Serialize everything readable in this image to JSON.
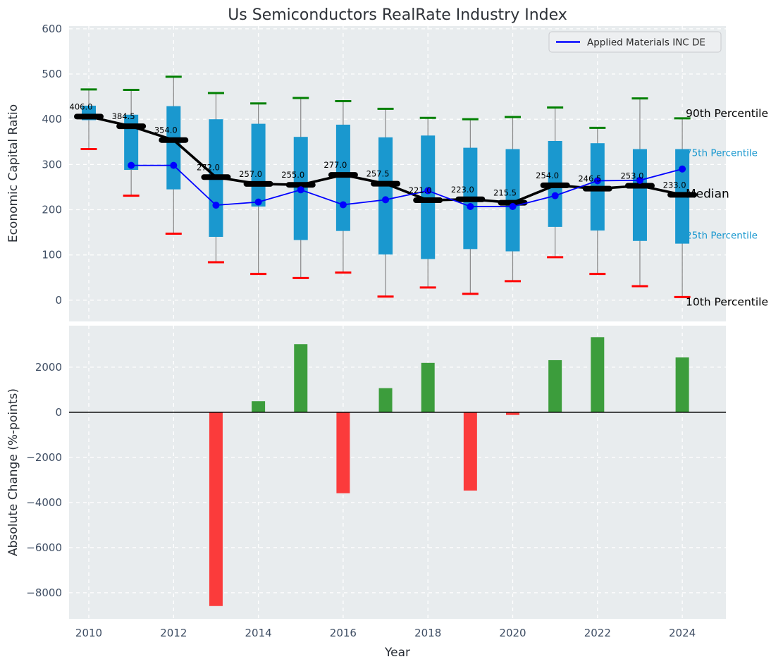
{
  "title": "Us Semiconductors RealRate Industry Index",
  "legend": {
    "label": "Applied Materials INC DE",
    "line_color": "#0000ff"
  },
  "chart_data": [
    {
      "type": "boxplot",
      "panel": "top",
      "title": "Us Semiconductors RealRate Industry Index",
      "ylabel": "Economic Capital Ratio",
      "ylim": [
        -47,
        606
      ],
      "yticks": [
        0,
        100,
        200,
        300,
        400,
        500,
        600
      ],
      "grid": true,
      "categories": [
        2010,
        2011,
        2012,
        2013,
        2014,
        2015,
        2016,
        2017,
        2018,
        2019,
        2020,
        2021,
        2022,
        2023,
        2024
      ],
      "xticks": [
        2010,
        2012,
        2014,
        2016,
        2018,
        2020,
        2022,
        2024
      ],
      "series": {
        "p90": [
          466,
          465,
          494,
          458,
          435,
          447,
          440,
          423,
          403,
          400,
          405,
          426,
          381,
          446,
          402
        ],
        "p75": [
          430,
          410,
          429,
          400,
          390,
          361,
          388,
          360,
          364,
          337,
          334,
          352,
          347,
          334,
          334
        ],
        "median": [
          406,
          384.5,
          354,
          272,
          257,
          255,
          277,
          257.5,
          221,
          223,
          215.5,
          254,
          246.5,
          253,
          233
        ],
        "p25": [
          398,
          288,
          245,
          140,
          207,
          133,
          153,
          101,
          91,
          113,
          108,
          162,
          154,
          131,
          125
        ],
        "p10": [
          334,
          231,
          147,
          84,
          58,
          49,
          61,
          8,
          28,
          14,
          42,
          95,
          58,
          31,
          7
        ],
        "applied_materials": [
          null,
          298,
          298,
          210,
          217,
          244,
          211,
          222,
          242,
          207,
          207,
          231,
          264,
          265,
          290
        ]
      },
      "median_labels": [
        "406.0",
        "384.5",
        "354.0",
        "272.0",
        "257.0",
        "255.0",
        "277.0",
        "257.5",
        "221.0",
        "223.0",
        "215.5",
        "254.0",
        "246.5",
        "253.0",
        "233.0"
      ],
      "annotations": [
        {
          "text": "90th Percentile",
          "value": 402,
          "color": "#000000",
          "size": 15.5,
          "dy": -2
        },
        {
          "text": "75th Percentile",
          "value": 334,
          "color": "#1a98cf",
          "size": 13.5,
          "dy": 10
        },
        {
          "text": "Median",
          "value": 233,
          "color": "#000000",
          "size": 17,
          "dy": 4
        },
        {
          "text": "25th Percentile",
          "value": 125,
          "color": "#1a98cf",
          "size": 13.5,
          "dy": -7
        },
        {
          "text": "10th Percentile",
          "value": 7,
          "color": "#000000",
          "size": 15.5,
          "dy": 12
        }
      ],
      "colors": {
        "box": "#1a98cf",
        "median_line": "#000000",
        "company_line": "#0000ff",
        "cap_high": "#008000",
        "cap_low": "#ff0000",
        "whisker": "#888888"
      }
    },
    {
      "type": "bar",
      "panel": "bottom",
      "ylabel": "Absolute Change (%-points)",
      "xlabel": "Year",
      "ylim": [
        -9160,
        3840
      ],
      "yticks": [
        2000,
        0,
        -2000,
        -4000,
        -6000,
        -8000
      ],
      "grid": true,
      "categories": [
        2010,
        2011,
        2012,
        2013,
        2014,
        2015,
        2016,
        2017,
        2018,
        2019,
        2020,
        2021,
        2022,
        2023,
        2024
      ],
      "xticks": [
        2010,
        2012,
        2014,
        2016,
        2018,
        2020,
        2022,
        2024
      ],
      "values": [
        null,
        null,
        null,
        -8590,
        490,
        3020,
        -3590,
        1070,
        2190,
        -3470,
        -120,
        2310,
        3330,
        null,
        2430
      ],
      "colors": {
        "positive": "#3c9d3c",
        "negative": "#fb3b3b",
        "zero_line": "#000000"
      }
    }
  ]
}
